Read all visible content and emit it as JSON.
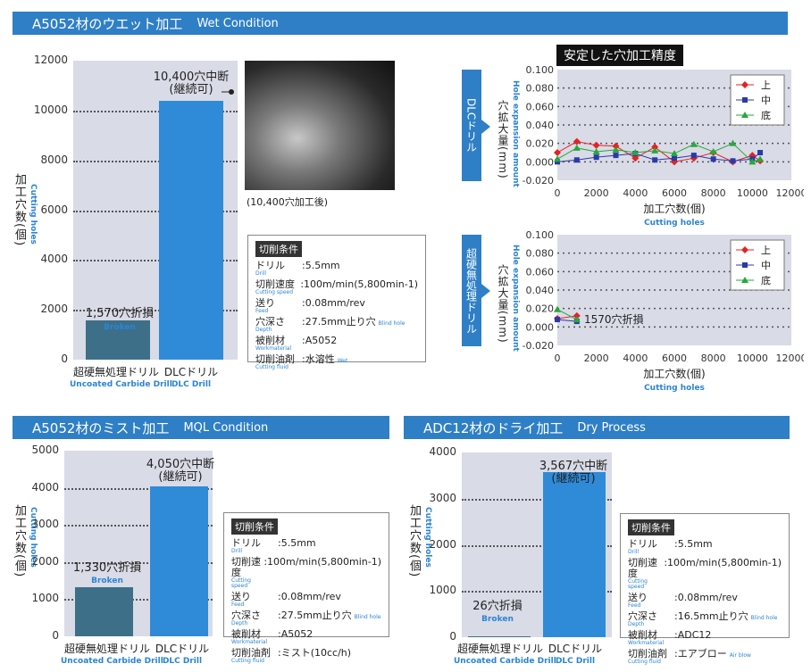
{
  "sections": {
    "wet": {
      "title": "A5052材のウエット加工",
      "title_en": "Wet Condition"
    },
    "mql": {
      "title": "A5052材のミスト加工",
      "title_en": "MQL Condition"
    },
    "dry": {
      "title": "ADC12材のドライ加工",
      "title_en": "Dry Process"
    }
  },
  "common": {
    "ylabel": "加工穴数(個)",
    "ylabel_en": "Cutting holes",
    "cat_uncoated": "超硬無処理ドリル",
    "cat_uncoated_en": "Uncoated Carbide Drill",
    "cat_dlc": "DLCドリル",
    "cat_dlc_en": "DLC Drill",
    "broken_en": "Broken"
  },
  "photo_caption": "(10,400穴加工後)",
  "wet_annotations": {
    "dlc_l1": "10,400穴中断",
    "dlc_l2": "(継続可)",
    "unc": "1,570穴折損"
  },
  "mql_annotations": {
    "dlc_l1": "4,050穴中断",
    "dlc_l2": "(継続可)",
    "unc": "1,330穴折損"
  },
  "dry_annotations": {
    "dlc_l1": "3,567穴中断",
    "dlc_l2": "(継続可)",
    "unc": "26穴折損"
  },
  "cond_wet": {
    "title": "切削条件",
    "rows": [
      {
        "k": "ドリル",
        "ken": "Drill",
        "v": ":5.5mm",
        "ven": ""
      },
      {
        "k": "切削速度",
        "ken": "Cutting speed",
        "v": ":100m/min(5,800min-1)",
        "ven": ""
      },
      {
        "k": "送り",
        "ken": "Feed",
        "v": ":0.08mm/rev",
        "ven": ""
      },
      {
        "k": "穴深さ",
        "ken": "Depth",
        "v": ":27.5mm止り穴",
        "ven": "Blind hole"
      },
      {
        "k": "被削材",
        "ken": "Workmaterial",
        "v": ":A5052",
        "ven": ""
      },
      {
        "k": "切削油剤",
        "ken": "Cutting fluid",
        "v": ":水溶性",
        "ven": "Wet"
      }
    ]
  },
  "cond_mql": {
    "title": "切削条件",
    "rows": [
      {
        "k": "ドリル",
        "ken": "Drill",
        "v": ":5.5mm",
        "ven": ""
      },
      {
        "k": "切削速度",
        "ken": "Cutting speed",
        "v": ":100m/min(5,800min-1)",
        "ven": ""
      },
      {
        "k": "送り",
        "ken": "Feed",
        "v": ":0.08mm/rev",
        "ven": ""
      },
      {
        "k": "穴深さ",
        "ken": "Depth",
        "v": ":27.5mm止り穴",
        "ven": "Blind hole"
      },
      {
        "k": "被削材",
        "ken": "Workmaterial",
        "v": ":A5052",
        "ven": ""
      },
      {
        "k": "切削油剤",
        "ken": "Cutting fluid",
        "v": ":ミスト(10cc/h)",
        "ven": ""
      }
    ]
  },
  "cond_dry": {
    "title": "切削条件",
    "rows": [
      {
        "k": "ドリル",
        "ken": "Drill",
        "v": ":5.5mm",
        "ven": ""
      },
      {
        "k": "切削速度",
        "ken": "Cutting speed",
        "v": ":100m/min(5,800min-1)",
        "ven": ""
      },
      {
        "k": "送り",
        "ken": "Feed",
        "v": ":0.08mm/rev",
        "ven": ""
      },
      {
        "k": "穴深さ",
        "ken": "Depth",
        "v": ":16.5mm止り穴",
        "ven": "Blind hole"
      },
      {
        "k": "被削材",
        "ken": "Workmaterial",
        "v": ":ADC12",
        "ven": ""
      },
      {
        "k": "切削油剤",
        "ken": "Cutting fluid",
        "v": ":エアブロー",
        "ven": "Air blow"
      }
    ]
  },
  "precision": {
    "title": "安定した穴加工精度",
    "tab_dlc": "DLCドリル",
    "tab_unc": "超硬無処理ドリル",
    "ylabel": "穴拡大量(mm)",
    "ylabel_en": "Hole expansion amount",
    "xlabel": "加工穴数(個)",
    "xlabel_en": "Cutting holes",
    "unc_note": "1570穴折損"
  },
  "colors": {
    "header": "#2f7fc6",
    "uncoated_bar": "#3d6f88",
    "dlc_bar": "#2f8ad8",
    "plot_bg": "#d9dbe6",
    "upper": "#e52222",
    "middle": "#2a3aa8",
    "bottom": "#26a83a"
  },
  "chart_data": [
    {
      "type": "bar",
      "title": "A5052材のウエット加工",
      "categories": [
        "超硬無処理ドリル",
        "DLCドリル"
      ],
      "values": [
        1570,
        10400
      ],
      "ylabel": "加工穴数(個)",
      "ylim": [
        0,
        12000
      ],
      "yticks": [
        0,
        2000,
        4000,
        6000,
        8000,
        10000,
        12000
      ],
      "grid": true
    },
    {
      "type": "bar",
      "title": "A5052材のミスト加工",
      "categories": [
        "超硬無処理ドリル",
        "DLCドリル"
      ],
      "values": [
        1330,
        4050
      ],
      "ylabel": "加工穴数(個)",
      "ylim": [
        0,
        5000
      ],
      "yticks": [
        0,
        1000,
        2000,
        3000,
        4000,
        5000
      ],
      "grid": true
    },
    {
      "type": "bar",
      "title": "ADC12材のドライ加工",
      "categories": [
        "超硬無処理ドリル",
        "DLCドリル"
      ],
      "values": [
        26,
        3567
      ],
      "ylabel": "加工穴数(個)",
      "ylim": [
        0,
        4000
      ],
      "yticks": [
        0,
        1000,
        2000,
        3000,
        4000
      ],
      "grid": true
    },
    {
      "type": "line",
      "title": "DLCドリル",
      "xlabel": "加工穴数(個)",
      "ylabel": "穴拡大量(mm)",
      "xlim": [
        0,
        12000
      ],
      "ylim": [
        -0.02,
        0.1
      ],
      "xticks": [
        0,
        2000,
        4000,
        6000,
        8000,
        10000,
        12000
      ],
      "yticks": [
        -0.02,
        0.0,
        0.02,
        0.04,
        0.06,
        0.08,
        0.1
      ],
      "yticklabels": [
        "-0.020",
        "0.000",
        "0.020",
        "0.040",
        "0.060",
        "0.080",
        "0.100"
      ],
      "legend": "top-right",
      "grid": true,
      "series": [
        {
          "name": "上",
          "marker": "diamond",
          "x": [
            0,
            1000,
            2000,
            3000,
            4000,
            5000,
            6000,
            7000,
            8000,
            9000,
            10000,
            10400
          ],
          "y": [
            0.01,
            0.022,
            0.018,
            0.017,
            0.004,
            0.016,
            0.0,
            0.004,
            0.01,
            0.0,
            0.007,
            0.001
          ]
        },
        {
          "name": "中",
          "marker": "square",
          "x": [
            0,
            1000,
            2000,
            3000,
            4000,
            5000,
            6000,
            7000,
            8000,
            9000,
            10000,
            10400
          ],
          "y": [
            0.0,
            0.002,
            0.005,
            0.007,
            0.009,
            0.002,
            0.004,
            0.007,
            0.003,
            0.001,
            0.003,
            0.01
          ]
        },
        {
          "name": "底",
          "marker": "triangle",
          "x": [
            0,
            1000,
            2000,
            3000,
            4000,
            5000,
            6000,
            7000,
            8000,
            9000,
            10000,
            10400
          ],
          "y": [
            0.003,
            0.015,
            0.011,
            0.013,
            0.01,
            0.012,
            0.009,
            0.019,
            0.011,
            0.02,
            0.0,
            0.003
          ]
        }
      ]
    },
    {
      "type": "line",
      "title": "超硬無処理ドリル",
      "xlabel": "加工穴数(個)",
      "ylabel": "穴拡大量(mm)",
      "xlim": [
        0,
        12000
      ],
      "ylim": [
        -0.02,
        0.1
      ],
      "xticks": [
        0,
        2000,
        4000,
        6000,
        8000,
        10000,
        12000
      ],
      "yticks": [
        -0.02,
        0.0,
        0.02,
        0.04,
        0.06,
        0.08,
        0.1
      ],
      "yticklabels": [
        "-0.020",
        "0.000",
        "0.020",
        "0.040",
        "0.060",
        "0.080",
        "0.100"
      ],
      "legend": "top-right",
      "grid": true,
      "series": [
        {
          "name": "上",
          "marker": "diamond",
          "x": [
            0,
            1000
          ],
          "y": [
            0.009,
            0.012
          ]
        },
        {
          "name": "中",
          "marker": "square",
          "x": [
            0,
            1000
          ],
          "y": [
            0.008,
            0.006
          ]
        },
        {
          "name": "底",
          "marker": "triangle",
          "x": [
            0,
            1000
          ],
          "y": [
            0.019,
            0.008
          ]
        }
      ]
    }
  ]
}
